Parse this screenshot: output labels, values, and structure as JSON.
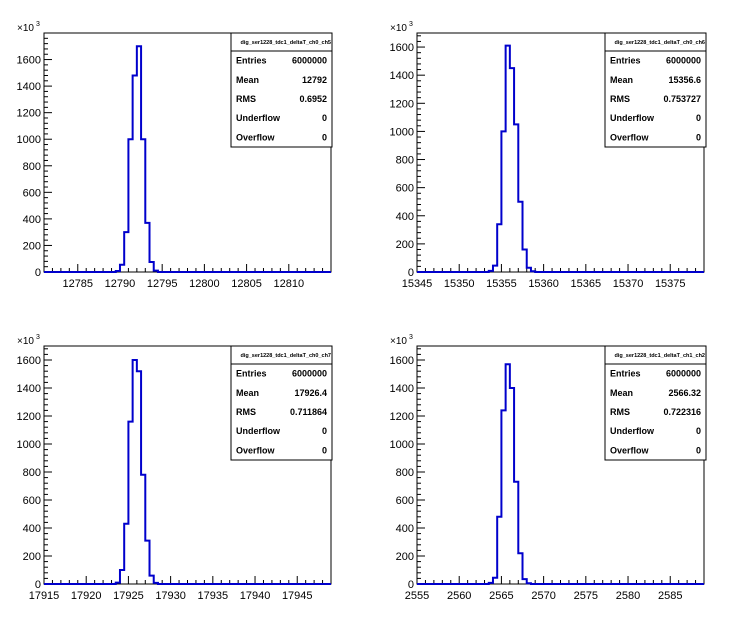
{
  "chart_data": [
    {
      "type": "bar",
      "histogram_name": "dig_ser1228_tdc1_deltaT_ch0_ch5",
      "x_range": [
        12781,
        12815
      ],
      "x_ticks": [
        12785,
        12790,
        12795,
        12800,
        12805,
        12810
      ],
      "y_range": [
        0,
        1800
      ],
      "y_ticks": [
        0,
        200,
        400,
        600,
        800,
        1000,
        1200,
        1400,
        1600
      ],
      "y_exponent_label": "10",
      "y_exponent_power": "3",
      "bin_width": 0.5,
      "bins": [
        {
          "x": 12789.5,
          "y": 8
        },
        {
          "x": 12790.0,
          "y": 55
        },
        {
          "x": 12790.5,
          "y": 300
        },
        {
          "x": 12791.0,
          "y": 1000
        },
        {
          "x": 12791.5,
          "y": 1480
        },
        {
          "x": 12792.0,
          "y": 1700
        },
        {
          "x": 12792.5,
          "y": 1000
        },
        {
          "x": 12793.0,
          "y": 370
        },
        {
          "x": 12793.5,
          "y": 75
        },
        {
          "x": 12794.0,
          "y": 10
        }
      ],
      "stats": {
        "Entries": "6000000",
        "Mean": "12792",
        "RMS": "0.6952",
        "Underflow": "0",
        "Overflow": "0"
      }
    },
    {
      "type": "bar",
      "histogram_name": "dig_ser1228_tdc1_deltaT_ch0_ch6",
      "x_range": [
        15345,
        15379
      ],
      "x_ticks": [
        15345,
        15350,
        15355,
        15360,
        15365,
        15370,
        15375
      ],
      "y_range": [
        0,
        1700
      ],
      "y_ticks": [
        0,
        200,
        400,
        600,
        800,
        1000,
        1200,
        1400,
        1600
      ],
      "y_exponent_label": "10",
      "y_exponent_power": "3",
      "bin_width": 0.5,
      "bins": [
        {
          "x": 15353.5,
          "y": 8
        },
        {
          "x": 15354.0,
          "y": 45
        },
        {
          "x": 15354.5,
          "y": 340
        },
        {
          "x": 15355.0,
          "y": 1000
        },
        {
          "x": 15355.5,
          "y": 1610
        },
        {
          "x": 15356.0,
          "y": 1450
        },
        {
          "x": 15356.5,
          "y": 1050
        },
        {
          "x": 15357.0,
          "y": 500
        },
        {
          "x": 15357.5,
          "y": 160
        },
        {
          "x": 15358.0,
          "y": 30
        },
        {
          "x": 15358.5,
          "y": 5
        }
      ],
      "stats": {
        "Entries": "6000000",
        "Mean": "15356.6",
        "RMS": "0.753727",
        "Underflow": "0",
        "Overflow": "0"
      }
    },
    {
      "type": "bar",
      "histogram_name": "dig_ser1228_tdc1_deltaT_ch0_ch7",
      "x_range": [
        17915,
        17949
      ],
      "x_ticks": [
        17915,
        17920,
        17925,
        17930,
        17935,
        17940,
        17945
      ],
      "y_range": [
        0,
        1700
      ],
      "y_ticks": [
        0,
        200,
        400,
        600,
        800,
        1000,
        1200,
        1400,
        1600
      ],
      "y_exponent_label": "10",
      "y_exponent_power": "3",
      "bin_width": 0.5,
      "bins": [
        {
          "x": 17923.5,
          "y": 10
        },
        {
          "x": 17924.0,
          "y": 100
        },
        {
          "x": 17924.5,
          "y": 430
        },
        {
          "x": 17925.0,
          "y": 1160
        },
        {
          "x": 17925.5,
          "y": 1600
        },
        {
          "x": 17926.0,
          "y": 1520
        },
        {
          "x": 17926.5,
          "y": 780
        },
        {
          "x": 17927.0,
          "y": 310
        },
        {
          "x": 17927.5,
          "y": 60
        },
        {
          "x": 17928.0,
          "y": 8
        }
      ],
      "stats": {
        "Entries": "6000000",
        "Mean": "17926.4",
        "RMS": "0.711864",
        "Underflow": "0",
        "Overflow": "0"
      }
    },
    {
      "type": "bar",
      "histogram_name": "dig_ser1228_tdc1_deltaT_ch1_ch2",
      "x_range": [
        2555,
        2589
      ],
      "x_ticks": [
        2555,
        2560,
        2565,
        2570,
        2575,
        2580,
        2585
      ],
      "y_range": [
        0,
        1700
      ],
      "y_ticks": [
        0,
        200,
        400,
        600,
        800,
        1000,
        1200,
        1400,
        1600
      ],
      "y_exponent_label": "10",
      "y_exponent_power": "3",
      "bin_width": 0.5,
      "bins": [
        {
          "x": 2563.5,
          "y": 8
        },
        {
          "x": 2564.0,
          "y": 45
        },
        {
          "x": 2564.5,
          "y": 480
        },
        {
          "x": 2565.0,
          "y": 1240
        },
        {
          "x": 2565.5,
          "y": 1570
        },
        {
          "x": 2566.0,
          "y": 1400
        },
        {
          "x": 2566.5,
          "y": 730
        },
        {
          "x": 2567.0,
          "y": 220
        },
        {
          "x": 2567.5,
          "y": 35
        },
        {
          "x": 2568.0,
          "y": 5
        }
      ],
      "stats": {
        "Entries": "6000000",
        "Mean": "2566.32",
        "RMS": "0.722316",
        "Underflow": "0",
        "Overflow": "0"
      }
    }
  ]
}
